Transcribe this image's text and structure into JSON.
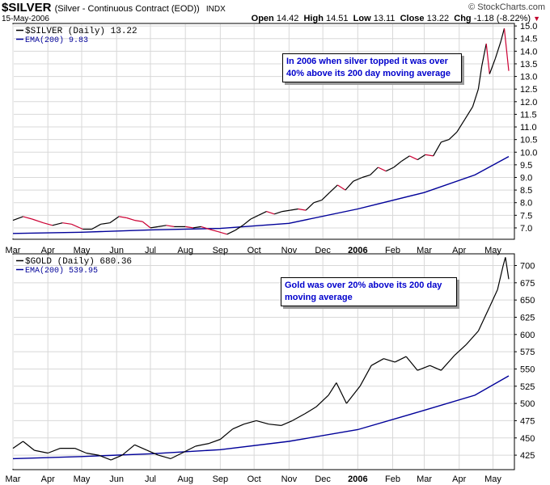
{
  "header": {
    "symbol": "$SILVER",
    "description": "(Silver - Continuous Contract (EOD))",
    "exchange": "INDX",
    "date": "15-May-2006",
    "watermark": "© StockCharts.com",
    "ohlc": {
      "open_label": "Open",
      "open": "14.42",
      "high_label": "High",
      "high": "14.51",
      "low_label": "Low",
      "low": "13.11",
      "close_label": "Close",
      "close": "13.22",
      "chg_label": "Chg",
      "chg": "-1.18 (-8.22%)"
    }
  },
  "colors": {
    "up": "#000000",
    "down": "#cc0033",
    "ema": "#000099",
    "annotation_text": "#0000cc",
    "grid": "#d8d8d8"
  },
  "chart_data": [
    {
      "type": "line",
      "panel": "top",
      "legend": [
        "$SILVER (Daily) 13.22",
        "EMA(200) 9.83"
      ],
      "x_tick_labels": [
        "Mar",
        "Apr",
        "May",
        "Jun",
        "Jul",
        "Aug",
        "Sep",
        "Oct",
        "Nov",
        "Dec",
        "2006",
        "Feb",
        "Mar",
        "Apr",
        "May"
      ],
      "y_ticks": [
        7.0,
        7.5,
        8.0,
        8.5,
        9.0,
        9.5,
        10.0,
        10.5,
        11.0,
        11.5,
        12.0,
        12.5,
        13.0,
        13.5,
        14.0,
        14.5,
        15.0
      ],
      "y_tick_labels": [
        "7.0",
        "7.5",
        "8.0",
        "8.5",
        "9.0",
        "9.5",
        "10.0",
        "10.5",
        "11.0",
        "11.5",
        "12.0",
        "12.5",
        "13.0",
        "13.5",
        "14.0",
        "14.5",
        "15.0"
      ],
      "ylim": [
        6.55,
        15.1
      ],
      "xlim": [
        "2005-03-01",
        "2006-05-20"
      ],
      "annotation": "In 2006 when silver topped it was over 40% above its 200 day moving average",
      "series": [
        {
          "name": "$SILVER (Daily)",
          "x": [
            "2005-03-01",
            "2005-03-10",
            "2005-03-18",
            "2005-03-28",
            "2005-04-05",
            "2005-04-14",
            "2005-04-22",
            "2005-05-02",
            "2005-05-10",
            "2005-05-18",
            "2005-05-26",
            "2005-06-03",
            "2005-06-10",
            "2005-06-17",
            "2005-06-24",
            "2005-07-01",
            "2005-07-08",
            "2005-07-15",
            "2005-07-22",
            "2005-08-01",
            "2005-08-08",
            "2005-08-15",
            "2005-08-22",
            "2005-08-30",
            "2005-09-07",
            "2005-09-14",
            "2005-09-21",
            "2005-09-28",
            "2005-10-05",
            "2005-10-12",
            "2005-10-19",
            "2005-10-26",
            "2005-11-02",
            "2005-11-09",
            "2005-11-16",
            "2005-11-23",
            "2005-11-30",
            "2005-12-07",
            "2005-12-14",
            "2005-12-21",
            "2005-12-28",
            "2006-01-05",
            "2006-01-12",
            "2006-01-19",
            "2006-01-26",
            "2006-02-02",
            "2006-02-09",
            "2006-02-16",
            "2006-02-23",
            "2006-03-02",
            "2006-03-09",
            "2006-03-16",
            "2006-03-23",
            "2006-03-30",
            "2006-04-06",
            "2006-04-13",
            "2006-04-18",
            "2006-04-21",
            "2006-04-25",
            "2006-04-28",
            "2006-05-03",
            "2006-05-08",
            "2006-05-11",
            "2006-05-15"
          ],
          "values": [
            7.3,
            7.45,
            7.35,
            7.2,
            7.1,
            7.2,
            7.15,
            6.95,
            6.95,
            7.15,
            7.2,
            7.45,
            7.4,
            7.3,
            7.25,
            7.0,
            7.05,
            7.1,
            7.05,
            7.05,
            7.0,
            7.05,
            6.95,
            6.85,
            6.75,
            6.9,
            7.1,
            7.35,
            7.5,
            7.65,
            7.55,
            7.65,
            7.7,
            7.75,
            7.7,
            8.0,
            8.1,
            8.4,
            8.7,
            8.5,
            8.85,
            9.0,
            9.1,
            9.4,
            9.25,
            9.4,
            9.65,
            9.85,
            9.7,
            9.9,
            9.85,
            10.4,
            10.5,
            10.8,
            11.3,
            11.8,
            12.5,
            13.4,
            14.3,
            13.1,
            13.7,
            14.4,
            14.9,
            13.22
          ]
        },
        {
          "name": "EMA(200)",
          "x": [
            "2005-03-01",
            "2005-05-01",
            "2005-07-01",
            "2005-09-01",
            "2005-11-01",
            "2006-01-01",
            "2006-03-01",
            "2006-04-15",
            "2006-05-15"
          ],
          "values": [
            6.78,
            6.83,
            6.92,
            6.98,
            7.18,
            7.75,
            8.4,
            9.1,
            9.83
          ]
        }
      ]
    },
    {
      "type": "line",
      "panel": "bottom",
      "legend": [
        "$GOLD (Daily) 680.36",
        "EMA(200) 539.95"
      ],
      "x_tick_labels": [
        "Mar",
        "Apr",
        "May",
        "Jun",
        "Jul",
        "Aug",
        "Sep",
        "Oct",
        "Nov",
        "Dec",
        "2006",
        "Feb",
        "Mar",
        "Apr",
        "May"
      ],
      "y_ticks": [
        425,
        450,
        475,
        500,
        525,
        550,
        575,
        600,
        625,
        650,
        675,
        700
      ],
      "y_tick_labels": [
        "425",
        "450",
        "475",
        "500",
        "525",
        "550",
        "575",
        "600",
        "625",
        "650",
        "675",
        "700"
      ],
      "ylim": [
        404,
        717
      ],
      "xlim": [
        "2005-03-01",
        "2006-05-20"
      ],
      "annotation": "Gold was over 20% above its 200 day moving average",
      "series": [
        {
          "name": "$GOLD (Daily)",
          "x": [
            "2005-03-01",
            "2005-03-10",
            "2005-03-20",
            "2005-04-01",
            "2005-04-12",
            "2005-04-25",
            "2005-05-05",
            "2005-05-16",
            "2005-05-27",
            "2005-06-06",
            "2005-06-17",
            "2005-06-28",
            "2005-07-08",
            "2005-07-19",
            "2005-07-29",
            "2005-08-10",
            "2005-08-22",
            "2005-09-01",
            "2005-09-12",
            "2005-09-22",
            "2005-10-03",
            "2005-10-14",
            "2005-10-25",
            "2005-11-04",
            "2005-11-15",
            "2005-11-25",
            "2005-12-06",
            "2005-12-13",
            "2005-12-22",
            "2006-01-03",
            "2006-01-13",
            "2006-01-24",
            "2006-02-03",
            "2006-02-13",
            "2006-02-23",
            "2006-03-06",
            "2006-03-16",
            "2006-03-28",
            "2006-04-07",
            "2006-04-18",
            "2006-04-28",
            "2006-05-05",
            "2006-05-10",
            "2006-05-12",
            "2006-05-15"
          ],
          "values": [
            435,
            445,
            432,
            428,
            435,
            435,
            428,
            425,
            418,
            425,
            440,
            432,
            425,
            420,
            428,
            438,
            442,
            448,
            463,
            470,
            475,
            470,
            468,
            475,
            485,
            495,
            512,
            530,
            500,
            525,
            555,
            565,
            560,
            568,
            548,
            555,
            548,
            570,
            585,
            605,
            640,
            665,
            700,
            712,
            680.36
          ]
        },
        {
          "name": "EMA(200)",
          "x": [
            "2005-03-01",
            "2005-05-01",
            "2005-07-01",
            "2005-09-01",
            "2005-11-01",
            "2006-01-01",
            "2006-03-01",
            "2006-04-15",
            "2006-05-15"
          ],
          "values": [
            420,
            423,
            427,
            433,
            445,
            462,
            490,
            512,
            539.95
          ]
        }
      ]
    }
  ]
}
